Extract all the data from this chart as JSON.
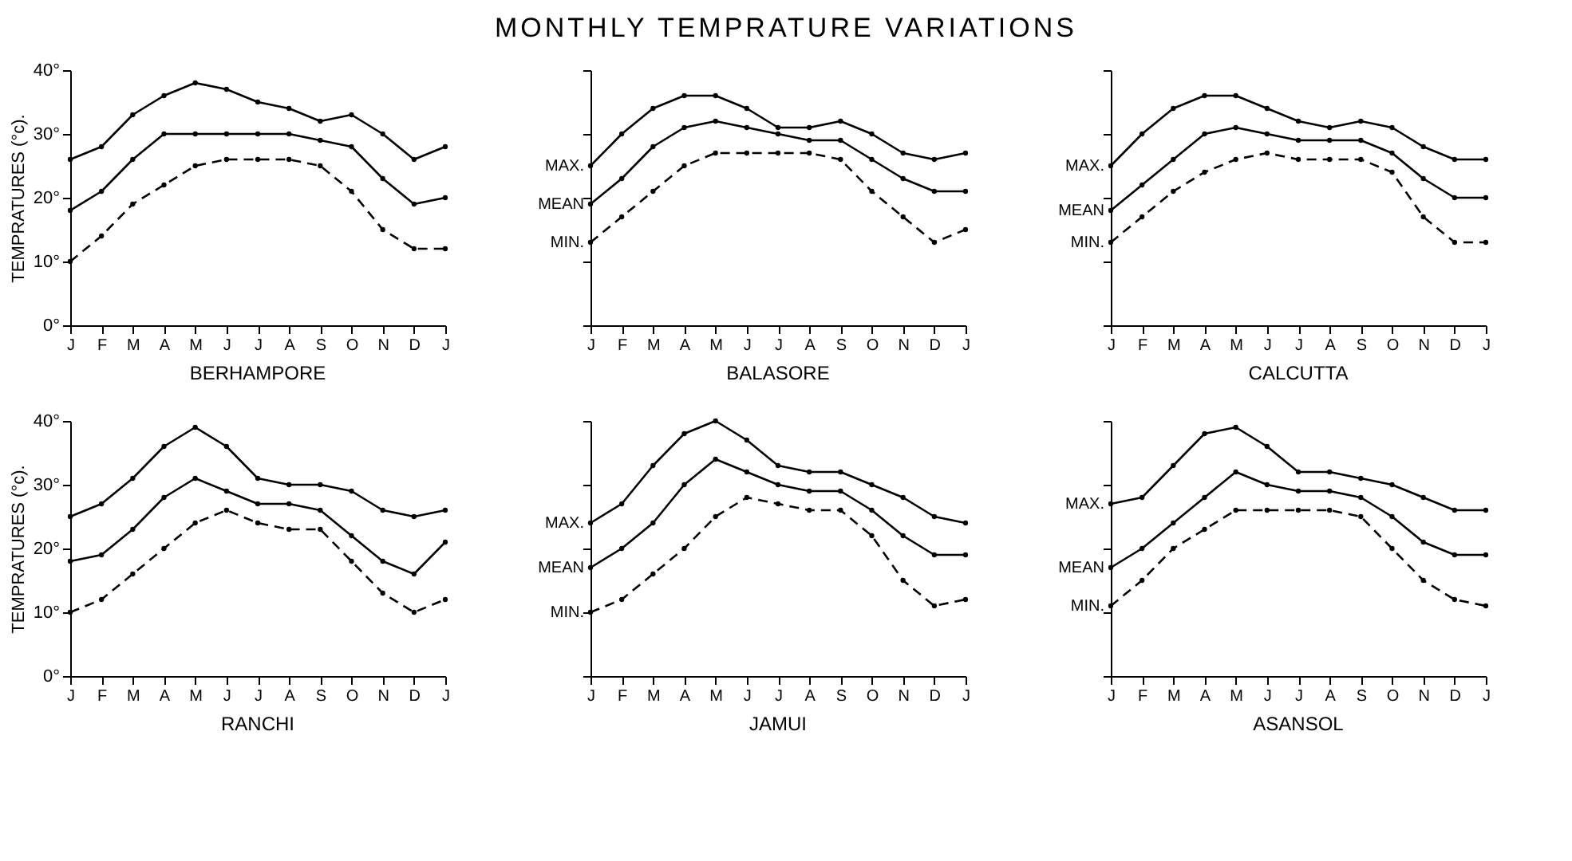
{
  "chart_data": [
    {
      "type": "other",
      "title": "MONTHLY TEMPRATURE VARIATIONS"
    },
    {
      "type": "line",
      "title": "BERHAMPORE",
      "ylabel": "TEMPRATURES (°c).",
      "categories": [
        "J",
        "F",
        "M",
        "A",
        "M",
        "J",
        "J",
        "A",
        "S",
        "O",
        "N",
        "D",
        "J"
      ],
      "ylim": [
        0,
        40
      ],
      "yticks": [
        {
          "value": 0,
          "label": "0°"
        },
        {
          "value": 10,
          "label": "10°"
        },
        {
          "value": 20,
          "label": "20°"
        },
        {
          "value": 30,
          "label": "30°"
        },
        {
          "value": 40,
          "label": "40°"
        }
      ],
      "marker": "circle",
      "series": [
        {
          "color": "#000000",
          "line_style": "solid",
          "values": [
            26,
            28,
            33,
            36,
            38,
            37,
            35,
            34,
            32,
            33,
            30,
            26,
            28
          ]
        },
        {
          "color": "#000000",
          "line_style": "solid",
          "values": [
            18,
            21,
            26,
            30,
            30,
            30,
            30,
            30,
            29,
            28,
            23,
            19,
            20
          ]
        },
        {
          "color": "#000000",
          "line_style": "dashed",
          "values": [
            10,
            14,
            19,
            22,
            25,
            26,
            26,
            26,
            25,
            21,
            15,
            12,
            12
          ]
        }
      ]
    },
    {
      "type": "line",
      "title": "BALASORE",
      "categories": [
        "J",
        "F",
        "M",
        "A",
        "M",
        "J",
        "J",
        "A",
        "S",
        "O",
        "N",
        "D",
        "J"
      ],
      "ylim": [
        0,
        40
      ],
      "yticks": [
        0,
        10,
        20,
        30,
        40
      ],
      "tick_labels": "x",
      "marker": "circle",
      "series": [
        {
          "name": "MAX.",
          "color": "#000000",
          "line_style": "solid",
          "values": [
            25,
            30,
            34,
            36,
            36,
            34,
            31,
            31,
            32,
            30,
            27,
            26,
            27
          ]
        },
        {
          "name": "MEAN",
          "color": "#000000",
          "line_style": "solid",
          "values": [
            19,
            23,
            28,
            31,
            32,
            31,
            30,
            29,
            29,
            26,
            23,
            21,
            21
          ]
        },
        {
          "name": "MIN.",
          "color": "#000000",
          "line_style": "dashed",
          "values": [
            13,
            17,
            21,
            25,
            27,
            27,
            27,
            27,
            26,
            21,
            17,
            13,
            15
          ]
        }
      ]
    },
    {
      "type": "line",
      "title": "CALCUTTA",
      "categories": [
        "J",
        "F",
        "M",
        "A",
        "M",
        "J",
        "J",
        "A",
        "S",
        "O",
        "N",
        "D",
        "J"
      ],
      "ylim": [
        0,
        40
      ],
      "yticks": [
        0,
        10,
        20,
        30,
        40
      ],
      "tick_labels": "x",
      "marker": "circle",
      "series": [
        {
          "name": "MAX.",
          "color": "#000000",
          "line_style": "solid",
          "values": [
            25,
            30,
            34,
            36,
            36,
            34,
            32,
            31,
            32,
            31,
            28,
            26,
            26
          ]
        },
        {
          "name": "MEAN",
          "color": "#000000",
          "line_style": "solid",
          "values": [
            18,
            22,
            26,
            30,
            31,
            30,
            29,
            29,
            29,
            27,
            23,
            20,
            20
          ]
        },
        {
          "name": "MIN.",
          "color": "#000000",
          "line_style": "dashed",
          "values": [
            13,
            17,
            21,
            24,
            26,
            27,
            26,
            26,
            26,
            24,
            17,
            13,
            13
          ]
        }
      ]
    },
    {
      "type": "line",
      "title": "RANCHI",
      "ylabel": "TEMPRATURES (°c).",
      "categories": [
        "J",
        "F",
        "M",
        "A",
        "M",
        "J",
        "J",
        "A",
        "S",
        "O",
        "N",
        "D",
        "J"
      ],
      "ylim": [
        0,
        40
      ],
      "yticks": [
        {
          "value": 0,
          "label": "0°"
        },
        {
          "value": 10,
          "label": "10°"
        },
        {
          "value": 20,
          "label": "20°"
        },
        {
          "value": 30,
          "label": "30°"
        },
        {
          "value": 40,
          "label": "40°"
        }
      ],
      "marker": "circle",
      "series": [
        {
          "color": "#000000",
          "line_style": "solid",
          "values": [
            25,
            27,
            31,
            36,
            39,
            36,
            31,
            30,
            30,
            29,
            26,
            25,
            26
          ]
        },
        {
          "color": "#000000",
          "line_style": "solid",
          "values": [
            18,
            19,
            23,
            28,
            31,
            29,
            27,
            27,
            26,
            22,
            18,
            16,
            21
          ]
        },
        {
          "color": "#000000",
          "line_style": "dashed",
          "values": [
            10,
            12,
            16,
            20,
            24,
            26,
            24,
            23,
            23,
            18,
            13,
            10,
            12
          ]
        }
      ]
    },
    {
      "type": "line",
      "title": "JAMUI",
      "categories": [
        "J",
        "F",
        "M",
        "A",
        "M",
        "J",
        "J",
        "A",
        "S",
        "O",
        "N",
        "D",
        "J"
      ],
      "ylim": [
        0,
        40
      ],
      "yticks": [
        0,
        10,
        20,
        30,
        40
      ],
      "tick_labels": "x",
      "marker": "circle",
      "series": [
        {
          "name": "MAX.",
          "color": "#000000",
          "line_style": "solid",
          "values": [
            24,
            27,
            33,
            38,
            40,
            37,
            33,
            32,
            32,
            30,
            28,
            25,
            24
          ]
        },
        {
          "name": "MEAN",
          "color": "#000000",
          "line_style": "solid",
          "values": [
            17,
            20,
            24,
            30,
            34,
            32,
            30,
            29,
            29,
            26,
            22,
            19,
            19
          ]
        },
        {
          "name": "MIN.",
          "color": "#000000",
          "line_style": "dashed",
          "values": [
            10,
            12,
            16,
            20,
            25,
            28,
            27,
            26,
            26,
            22,
            15,
            11,
            12
          ]
        }
      ]
    },
    {
      "type": "line",
      "title": "ASANSOL",
      "categories": [
        "J",
        "F",
        "M",
        "A",
        "M",
        "J",
        "J",
        "A",
        "S",
        "O",
        "N",
        "D",
        "J"
      ],
      "ylim": [
        0,
        40
      ],
      "yticks": [
        0,
        10,
        20,
        30,
        40
      ],
      "tick_labels": "x",
      "marker": "circle",
      "series": [
        {
          "name": "MAX.",
          "color": "#000000",
          "line_style": "solid",
          "values": [
            27,
            28,
            33,
            38,
            39,
            36,
            32,
            32,
            31,
            30,
            28,
            26,
            26
          ]
        },
        {
          "name": "MEAN",
          "color": "#000000",
          "line_style": "solid",
          "values": [
            17,
            20,
            24,
            28,
            32,
            30,
            29,
            29,
            28,
            25,
            21,
            19,
            19
          ]
        },
        {
          "name": "MIN.",
          "color": "#000000",
          "line_style": "dashed",
          "values": [
            11,
            15,
            20,
            23,
            26,
            26,
            26,
            26,
            25,
            20,
            15,
            12,
            11
          ]
        }
      ]
    }
  ]
}
